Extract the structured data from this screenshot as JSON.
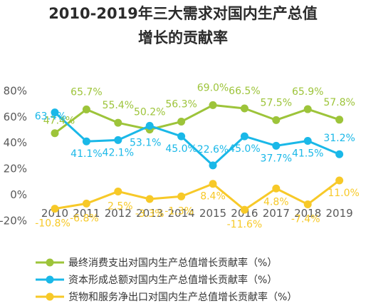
{
  "chart_data": {
    "type": "line",
    "title": "2010-2019年三大需求对国内生产总值增长的贡献率",
    "title_lines": [
      "2010-2019年三大需求对国内生产总值",
      "增长的贡献率"
    ],
    "categories": [
      "2010",
      "2011",
      "2012",
      "2013",
      "2014",
      "2015",
      "2016",
      "2017",
      "2018",
      "2019"
    ],
    "y_ticks": [
      "80%",
      "60%",
      "40%",
      "20%",
      "0%",
      "-20%"
    ],
    "ylim": [
      -20,
      80
    ],
    "grid": false,
    "legend_position": "bottom",
    "series": [
      {
        "name": "最终消费支出对国内生产总值增长贡献率（%）",
        "color": "#9dc43a",
        "values": [
          47.4,
          65.7,
          55.4,
          50.2,
          56.3,
          69.0,
          66.5,
          57.5,
          65.9,
          57.8
        ],
        "labels": [
          "47.4%",
          "65.7%",
          "55.4%",
          "50.2%",
          "56.3%",
          "69.0%",
          "66.5%",
          "57.5%",
          "65.9%",
          "57.8%"
        ]
      },
      {
        "name": "资本形成总额对国内生产总值增长贡献率（%）",
        "color": "#1ab8e8",
        "values": [
          63.4,
          41.1,
          42.1,
          53.1,
          45.0,
          22.6,
          45.0,
          37.7,
          41.5,
          31.2
        ],
        "labels": [
          "63.4%",
          "41.1%",
          "42.1%",
          "53.1%",
          "45.0%",
          "22.6%",
          "45.0%",
          "37.7%",
          "41.5%",
          "31.2%"
        ]
      },
      {
        "name": "货物和服务净出口对国内生产总值增长贡献率（%）",
        "color": "#f7c928",
        "values": [
          -10.8,
          -6.8,
          2.5,
          -3.3,
          -1.3,
          8.4,
          -11.6,
          4.8,
          -7.4,
          11.0
        ],
        "labels": [
          "-10.8%",
          "-6.8%",
          "2.5%",
          "-3.3%",
          "-1.3%",
          "8.4%",
          "-11.6%",
          "4.8%",
          "-7.4%",
          "11.0%"
        ]
      }
    ]
  }
}
